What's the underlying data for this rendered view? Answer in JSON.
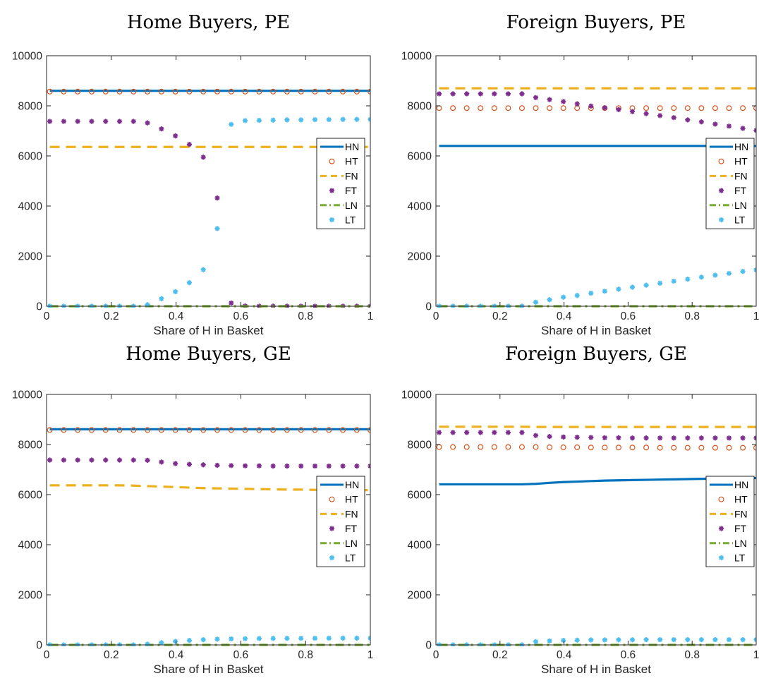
{
  "colors": {
    "HN": "#0072BD",
    "HT": "#D95319",
    "FN": "#EDB120",
    "FT": "#7E2F8E",
    "LN": "#77AC30",
    "LT": "#4DBEEE"
  },
  "legend_entries": [
    "HN",
    "HT",
    "FN",
    "FT",
    "LN",
    "LT"
  ],
  "chart_data": [
    {
      "type": "line",
      "title": "Home Buyers, PE",
      "xlabel": "Share of H in Basket",
      "ylabel": "",
      "xlim": [
        0,
        1
      ],
      "ylim": [
        0,
        10000
      ],
      "xticks": [
        "0",
        "0.2",
        "0.4",
        "0.6",
        "0.8",
        "1"
      ],
      "yticks": [
        "0",
        "2000",
        "4000",
        "6000",
        "8000",
        "10000"
      ],
      "legend_position": "right",
      "x": [
        0.01,
        0.0531,
        0.0962,
        0.1393,
        0.1824,
        0.2255,
        0.2686,
        0.3117,
        0.3548,
        0.3979,
        0.441,
        0.4841,
        0.5272,
        0.5703,
        0.6134,
        0.6566,
        0.6997,
        0.7428,
        0.7859,
        0.829,
        0.8721,
        0.9152,
        0.9583,
        1.0
      ],
      "series": [
        {
          "name": "HN",
          "style": "solid",
          "values": [
            8600,
            8600,
            8600,
            8600,
            8600,
            8600,
            8600,
            8600,
            8600,
            8600,
            8600,
            8600,
            8600,
            8600,
            8600,
            8600,
            8600,
            8600,
            8600,
            8600,
            8600,
            8600,
            8600,
            8600
          ]
        },
        {
          "name": "HT",
          "style": "circle",
          "values": [
            8570,
            8570,
            8570,
            8570,
            8570,
            8570,
            8570,
            8570,
            8570,
            8570,
            8570,
            8570,
            8570,
            8570,
            8570,
            8570,
            8570,
            8570,
            8570,
            8570,
            8570,
            8570,
            8570,
            8570
          ]
        },
        {
          "name": "FN",
          "style": "dashed",
          "values": [
            6360,
            6360,
            6360,
            6360,
            6360,
            6360,
            6360,
            6360,
            6360,
            6360,
            6360,
            6360,
            6360,
            6360,
            6360,
            6360,
            6360,
            6360,
            6360,
            6360,
            6360,
            6360,
            6360,
            6360
          ]
        },
        {
          "name": "FT",
          "style": "star",
          "values": [
            7380,
            7380,
            7380,
            7380,
            7380,
            7380,
            7380,
            7320,
            7080,
            6800,
            6460,
            5950,
            4320,
            130,
            10,
            0,
            0,
            0,
            0,
            0,
            0,
            0,
            0,
            0
          ]
        },
        {
          "name": "LN",
          "style": "dashdot",
          "values": [
            0,
            0,
            0,
            0,
            0,
            0,
            0,
            0,
            0,
            0,
            0,
            0,
            0,
            0,
            0,
            0,
            0,
            0,
            0,
            0,
            0,
            0,
            0,
            0
          ]
        },
        {
          "name": "LT",
          "style": "star",
          "values": [
            0,
            0,
            0,
            0,
            0,
            0,
            0,
            60,
            300,
            580,
            940,
            1460,
            3100,
            7260,
            7410,
            7420,
            7430,
            7440,
            7440,
            7450,
            7450,
            7460,
            7460,
            7460
          ]
        }
      ]
    },
    {
      "type": "line",
      "title": "Foreign Buyers, PE",
      "xlabel": "Share of H in Basket",
      "ylabel": "",
      "xlim": [
        0,
        1
      ],
      "ylim": [
        0,
        10000
      ],
      "xticks": [
        "0",
        "0.2",
        "0.4",
        "0.6",
        "0.8",
        "1"
      ],
      "yticks": [
        "0",
        "2000",
        "4000",
        "6000",
        "8000",
        "10000"
      ],
      "legend_position": "right",
      "x": [
        0.01,
        0.0531,
        0.0962,
        0.1393,
        0.1824,
        0.2255,
        0.2686,
        0.3117,
        0.3548,
        0.3979,
        0.441,
        0.4841,
        0.5272,
        0.5703,
        0.6134,
        0.6566,
        0.6997,
        0.7428,
        0.7859,
        0.829,
        0.8721,
        0.9152,
        0.9583,
        1.0
      ],
      "series": [
        {
          "name": "HN",
          "style": "solid",
          "values": [
            6400,
            6400,
            6400,
            6400,
            6400,
            6400,
            6400,
            6400,
            6400,
            6400,
            6400,
            6400,
            6400,
            6400,
            6400,
            6400,
            6400,
            6400,
            6400,
            6400,
            6400,
            6400,
            6400,
            6400
          ]
        },
        {
          "name": "HT",
          "style": "circle",
          "values": [
            7910,
            7910,
            7910,
            7910,
            7910,
            7910,
            7910,
            7910,
            7910,
            7910,
            7910,
            7910,
            7910,
            7910,
            7910,
            7910,
            7910,
            7910,
            7910,
            7910,
            7910,
            7910,
            7910,
            7910
          ]
        },
        {
          "name": "FN",
          "style": "dashed",
          "values": [
            8700,
            8700,
            8700,
            8700,
            8700,
            8700,
            8700,
            8700,
            8700,
            8700,
            8700,
            8700,
            8700,
            8700,
            8700,
            8700,
            8700,
            8700,
            8700,
            8700,
            8700,
            8700,
            8700,
            8700
          ]
        },
        {
          "name": "FT",
          "style": "star",
          "values": [
            8480,
            8480,
            8480,
            8480,
            8480,
            8480,
            8480,
            8330,
            8250,
            8170,
            8080,
            7990,
            7920,
            7850,
            7770,
            7690,
            7610,
            7530,
            7440,
            7360,
            7270,
            7190,
            7100,
            7020
          ]
        },
        {
          "name": "LN",
          "style": "dashdot",
          "values": [
            0,
            0,
            0,
            0,
            0,
            0,
            0,
            0,
            0,
            0,
            0,
            0,
            0,
            0,
            0,
            0,
            0,
            0,
            0,
            0,
            0,
            0,
            0,
            0
          ]
        },
        {
          "name": "LT",
          "style": "star",
          "values": [
            0,
            0,
            0,
            0,
            0,
            0,
            0,
            160,
            260,
            360,
            430,
            520,
            600,
            680,
            760,
            840,
            920,
            1000,
            1080,
            1160,
            1240,
            1310,
            1390,
            1450
          ]
        }
      ]
    },
    {
      "type": "line",
      "title": "Home Buyers, GE",
      "xlabel": "Share of H in Basket",
      "ylabel": "",
      "xlim": [
        0,
        1
      ],
      "ylim": [
        0,
        10000
      ],
      "xticks": [
        "0",
        "0.2",
        "0.4",
        "0.6",
        "0.8",
        "1"
      ],
      "yticks": [
        "0",
        "2000",
        "4000",
        "6000",
        "8000",
        "10000"
      ],
      "legend_position": "right",
      "x": [
        0.01,
        0.0531,
        0.0962,
        0.1393,
        0.1824,
        0.2255,
        0.2686,
        0.3117,
        0.3548,
        0.3979,
        0.441,
        0.4841,
        0.5272,
        0.5703,
        0.6134,
        0.6566,
        0.6997,
        0.7428,
        0.7859,
        0.829,
        0.8721,
        0.9152,
        0.9583,
        1.0
      ],
      "series": [
        {
          "name": "HN",
          "style": "solid",
          "values": [
            8610,
            8610,
            8610,
            8610,
            8610,
            8610,
            8610,
            8610,
            8610,
            8610,
            8610,
            8610,
            8610,
            8610,
            8610,
            8610,
            8610,
            8610,
            8610,
            8610,
            8610,
            8610,
            8610,
            8610
          ]
        },
        {
          "name": "HT",
          "style": "circle",
          "values": [
            8580,
            8580,
            8580,
            8580,
            8580,
            8580,
            8580,
            8580,
            8580,
            8580,
            8580,
            8580,
            8580,
            8580,
            8580,
            8580,
            8580,
            8580,
            8580,
            8580,
            8580,
            8580,
            8580,
            8580
          ]
        },
        {
          "name": "FN",
          "style": "dashed",
          "values": [
            6370,
            6370,
            6370,
            6370,
            6370,
            6370,
            6360,
            6340,
            6320,
            6300,
            6280,
            6260,
            6250,
            6240,
            6230,
            6220,
            6210,
            6200,
            6200,
            6190,
            6190,
            6180,
            6180,
            6180
          ]
        },
        {
          "name": "FT",
          "style": "star",
          "values": [
            7380,
            7380,
            7380,
            7380,
            7380,
            7380,
            7380,
            7370,
            7300,
            7240,
            7210,
            7190,
            7170,
            7160,
            7150,
            7150,
            7140,
            7140,
            7140,
            7140,
            7140,
            7140,
            7140,
            7140
          ]
        },
        {
          "name": "LN",
          "style": "dashdot",
          "values": [
            0,
            0,
            0,
            0,
            0,
            0,
            0,
            0,
            0,
            0,
            0,
            0,
            0,
            0,
            0,
            0,
            0,
            0,
            0,
            0,
            0,
            0,
            0,
            0
          ]
        },
        {
          "name": "LT",
          "style": "star",
          "values": [
            0,
            0,
            0,
            0,
            0,
            0,
            0,
            30,
            90,
            140,
            180,
            210,
            230,
            240,
            250,
            255,
            260,
            262,
            264,
            266,
            268,
            270,
            270,
            270
          ]
        }
      ]
    },
    {
      "type": "line",
      "title": "Foreign Buyers, GE",
      "xlabel": "Share of H in Basket",
      "ylabel": "",
      "xlim": [
        0,
        1
      ],
      "ylim": [
        0,
        10000
      ],
      "xticks": [
        "0",
        "0.2",
        "0.4",
        "0.6",
        "0.8",
        "1"
      ],
      "yticks": [
        "0",
        "2000",
        "4000",
        "6000",
        "8000",
        "10000"
      ],
      "legend_position": "right",
      "x": [
        0.01,
        0.0531,
        0.0962,
        0.1393,
        0.1824,
        0.2255,
        0.2686,
        0.3117,
        0.3548,
        0.3979,
        0.441,
        0.4841,
        0.5272,
        0.5703,
        0.6134,
        0.6566,
        0.6997,
        0.7428,
        0.7859,
        0.829,
        0.8721,
        0.9152,
        0.9583,
        1.0
      ],
      "series": [
        {
          "name": "HN",
          "style": "solid",
          "values": [
            6410,
            6410,
            6410,
            6410,
            6410,
            6410,
            6410,
            6430,
            6470,
            6500,
            6520,
            6540,
            6560,
            6570,
            6580,
            6590,
            6600,
            6610,
            6620,
            6630,
            6640,
            6650,
            6660,
            6660
          ]
        },
        {
          "name": "HT",
          "style": "circle",
          "values": [
            7900,
            7900,
            7900,
            7900,
            7900,
            7900,
            7900,
            7900,
            7890,
            7890,
            7890,
            7880,
            7880,
            7880,
            7880,
            7880,
            7870,
            7870,
            7870,
            7870,
            7870,
            7870,
            7870,
            7870
          ]
        },
        {
          "name": "FN",
          "style": "dashed",
          "values": [
            8710,
            8710,
            8710,
            8710,
            8710,
            8710,
            8710,
            8700,
            8700,
            8700,
            8700,
            8700,
            8700,
            8700,
            8700,
            8700,
            8700,
            8700,
            8700,
            8700,
            8700,
            8700,
            8700,
            8700
          ]
        },
        {
          "name": "FT",
          "style": "star",
          "values": [
            8480,
            8480,
            8480,
            8480,
            8480,
            8480,
            8480,
            8360,
            8320,
            8300,
            8290,
            8280,
            8270,
            8270,
            8260,
            8260,
            8260,
            8260,
            8260,
            8260,
            8260,
            8260,
            8260,
            8260
          ]
        },
        {
          "name": "LN",
          "style": "dashdot",
          "values": [
            0,
            0,
            0,
            0,
            0,
            0,
            0,
            0,
            0,
            0,
            0,
            0,
            0,
            0,
            0,
            0,
            0,
            0,
            0,
            0,
            0,
            0,
            0,
            0
          ]
        },
        {
          "name": "LT",
          "style": "star",
          "values": [
            0,
            0,
            0,
            0,
            0,
            0,
            0,
            130,
            160,
            180,
            190,
            200,
            200,
            205,
            205,
            210,
            210,
            210,
            210,
            210,
            210,
            210,
            210,
            210
          ]
        }
      ]
    }
  ]
}
